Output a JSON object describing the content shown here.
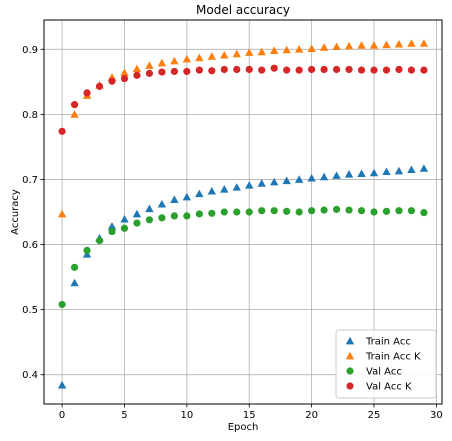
{
  "chart_data": {
    "type": "scatter",
    "title": "Model accuracy",
    "xlabel": "Epoch",
    "ylabel": "Accuracy",
    "xlim": [
      -1.45,
      30.45
    ],
    "ylim": [
      0.355,
      0.945
    ],
    "xticks": [
      0,
      5,
      10,
      15,
      20,
      25,
      30
    ],
    "yticks": [
      0.4,
      0.5,
      0.6,
      0.7,
      0.8,
      0.9
    ],
    "ytick_labels": [
      "0.4",
      "0.5",
      "0.6",
      "0.7",
      "0.8",
      "0.9"
    ],
    "grid": true,
    "legend_position": "lower-right",
    "x": [
      0,
      1,
      2,
      3,
      4,
      5,
      6,
      7,
      8,
      9,
      10,
      11,
      12,
      13,
      14,
      15,
      16,
      17,
      18,
      19,
      20,
      21,
      22,
      23,
      24,
      25,
      26,
      27,
      28,
      29
    ],
    "series": [
      {
        "name": "Train Acc",
        "marker": "triangle",
        "color": "#1f77b4",
        "values": [
          0.384,
          0.541,
          0.585,
          0.61,
          0.628,
          0.639,
          0.647,
          0.655,
          0.662,
          0.669,
          0.673,
          0.678,
          0.682,
          0.685,
          0.688,
          0.691,
          0.694,
          0.696,
          0.698,
          0.7,
          0.702,
          0.704,
          0.706,
          0.708,
          0.709,
          0.71,
          0.712,
          0.713,
          0.715,
          0.717
        ]
      },
      {
        "name": "Train Acc K",
        "marker": "triangle",
        "color": "#ff7f0e",
        "values": [
          0.647,
          0.8,
          0.829,
          0.845,
          0.857,
          0.864,
          0.87,
          0.875,
          0.879,
          0.882,
          0.885,
          0.887,
          0.889,
          0.891,
          0.893,
          0.895,
          0.896,
          0.898,
          0.899,
          0.9,
          0.901,
          0.903,
          0.904,
          0.905,
          0.906,
          0.906,
          0.907,
          0.908,
          0.909,
          0.909
        ]
      },
      {
        "name": "Val Acc",
        "marker": "circle",
        "color": "#2ca02c",
        "values": [
          0.508,
          0.565,
          0.591,
          0.606,
          0.62,
          0.625,
          0.633,
          0.638,
          0.641,
          0.644,
          0.644,
          0.647,
          0.648,
          0.65,
          0.65,
          0.65,
          0.652,
          0.652,
          0.651,
          0.65,
          0.652,
          0.653,
          0.654,
          0.653,
          0.652,
          0.65,
          0.651,
          0.652,
          0.652,
          0.649
        ]
      },
      {
        "name": "Val Acc K",
        "marker": "circle",
        "color": "#d62728",
        "values": [
          0.774,
          0.815,
          0.833,
          0.843,
          0.851,
          0.855,
          0.86,
          0.863,
          0.865,
          0.866,
          0.866,
          0.868,
          0.867,
          0.869,
          0.869,
          0.869,
          0.868,
          0.871,
          0.868,
          0.868,
          0.869,
          0.869,
          0.869,
          0.869,
          0.868,
          0.868,
          0.868,
          0.869,
          0.868,
          0.868
        ]
      }
    ]
  }
}
